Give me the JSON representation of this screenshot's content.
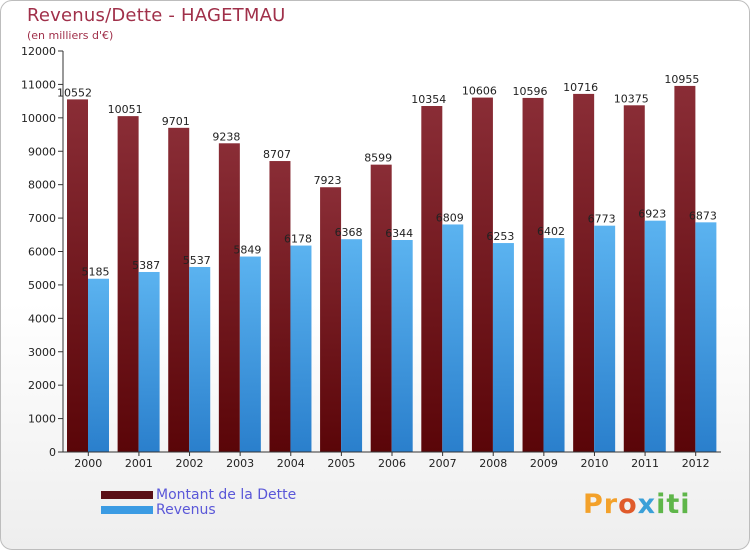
{
  "chart_data": {
    "type": "bar",
    "title": "Revenus/Dette - HAGETMAU",
    "subtitle": "(en milliers d'€)",
    "categories": [
      "2000",
      "2001",
      "2002",
      "2003",
      "2004",
      "2005",
      "2006",
      "2007",
      "2008",
      "2009",
      "2010",
      "2011",
      "2012"
    ],
    "series": [
      {
        "name": "Montant de la Dette",
        "color": "#7a1f28",
        "values": [
          10552,
          10051,
          9701,
          9238,
          8707,
          7923,
          8599,
          10354,
          10606,
          10596,
          10716,
          10375,
          10955
        ]
      },
      {
        "name": "Revenus",
        "color": "#3b9be3",
        "values": [
          5185,
          5387,
          5537,
          5849,
          6178,
          6368,
          6344,
          6809,
          6253,
          6402,
          6773,
          6923,
          6873
        ]
      }
    ],
    "ylim": [
      0,
      12000
    ],
    "ytick_step": 1000,
    "xlabel": "",
    "ylabel": "",
    "grid": false,
    "legend_position": "bottom-left"
  },
  "logo": {
    "parts": [
      "Pr",
      "o",
      "x",
      "iti"
    ]
  }
}
